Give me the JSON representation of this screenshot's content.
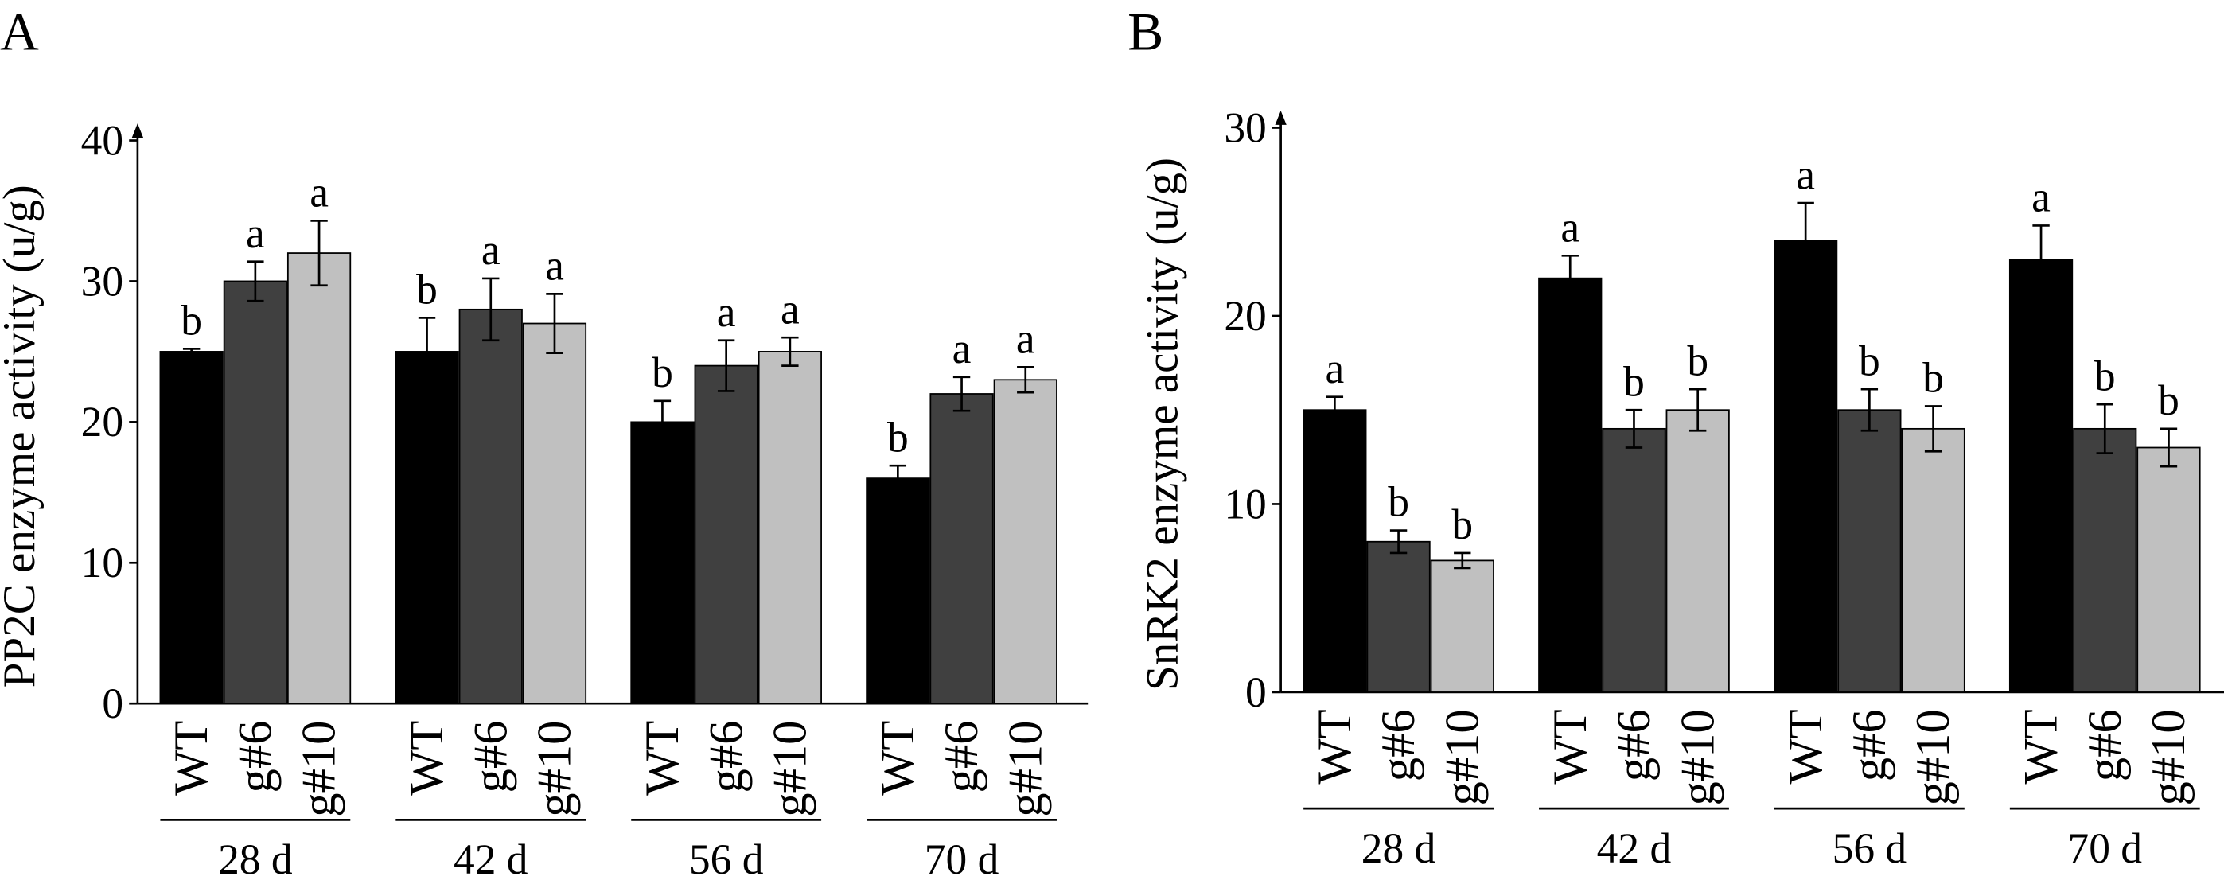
{
  "chart_data": [
    {
      "type": "bar",
      "panel": "A",
      "y_label": "PP2C enzyme activity (u/g)",
      "categories": [
        "28 d",
        "42 d",
        "56 d",
        "70 d"
      ],
      "ylim": [
        0,
        40
      ],
      "yticks": [
        0,
        10,
        20,
        30,
        40
      ],
      "series": [
        {
          "name": "WT",
          "color": "#000000",
          "values": [
            25,
            25,
            20,
            16
          ],
          "errors": [
            0.2,
            2.4,
            1.5,
            0.9
          ],
          "letters": [
            "b",
            "b",
            "b",
            "b"
          ]
        },
        {
          "name": "g#6",
          "color": "#404040",
          "values": [
            30,
            28,
            24,
            22
          ],
          "errors": [
            1.4,
            2.2,
            1.8,
            1.2
          ],
          "letters": [
            "a",
            "a",
            "a",
            "a"
          ]
        },
        {
          "name": "g#10",
          "color": "#c0c0c0",
          "values": [
            32,
            27,
            25,
            23
          ],
          "errors": [
            2.3,
            2.1,
            1.0,
            0.9
          ],
          "letters": [
            "a",
            "a",
            "a",
            "a"
          ]
        }
      ]
    },
    {
      "type": "bar",
      "panel": "B",
      "y_label": "SnRK2 enzyme activity (u/g)",
      "categories": [
        "28 d",
        "42 d",
        "56 d",
        "70 d"
      ],
      "ylim": [
        0,
        30
      ],
      "yticks": [
        0,
        10,
        20,
        30
      ],
      "series": [
        {
          "name": "WT",
          "color": "#000000",
          "values": [
            15,
            22,
            24,
            23
          ],
          "errors": [
            0.7,
            1.2,
            2.0,
            1.8
          ],
          "letters": [
            "a",
            "a",
            "a",
            "a"
          ]
        },
        {
          "name": "g#6",
          "color": "#404040",
          "values": [
            8,
            14,
            15,
            14
          ],
          "errors": [
            0.6,
            1.0,
            1.1,
            1.3
          ],
          "letters": [
            "b",
            "b",
            "b",
            "b"
          ]
        },
        {
          "name": "g#10",
          "color": "#c0c0c0",
          "values": [
            7,
            15,
            14,
            13
          ],
          "errors": [
            0.4,
            1.1,
            1.2,
            1.0
          ],
          "letters": [
            "b",
            "b",
            "b",
            "b"
          ]
        }
      ]
    }
  ]
}
